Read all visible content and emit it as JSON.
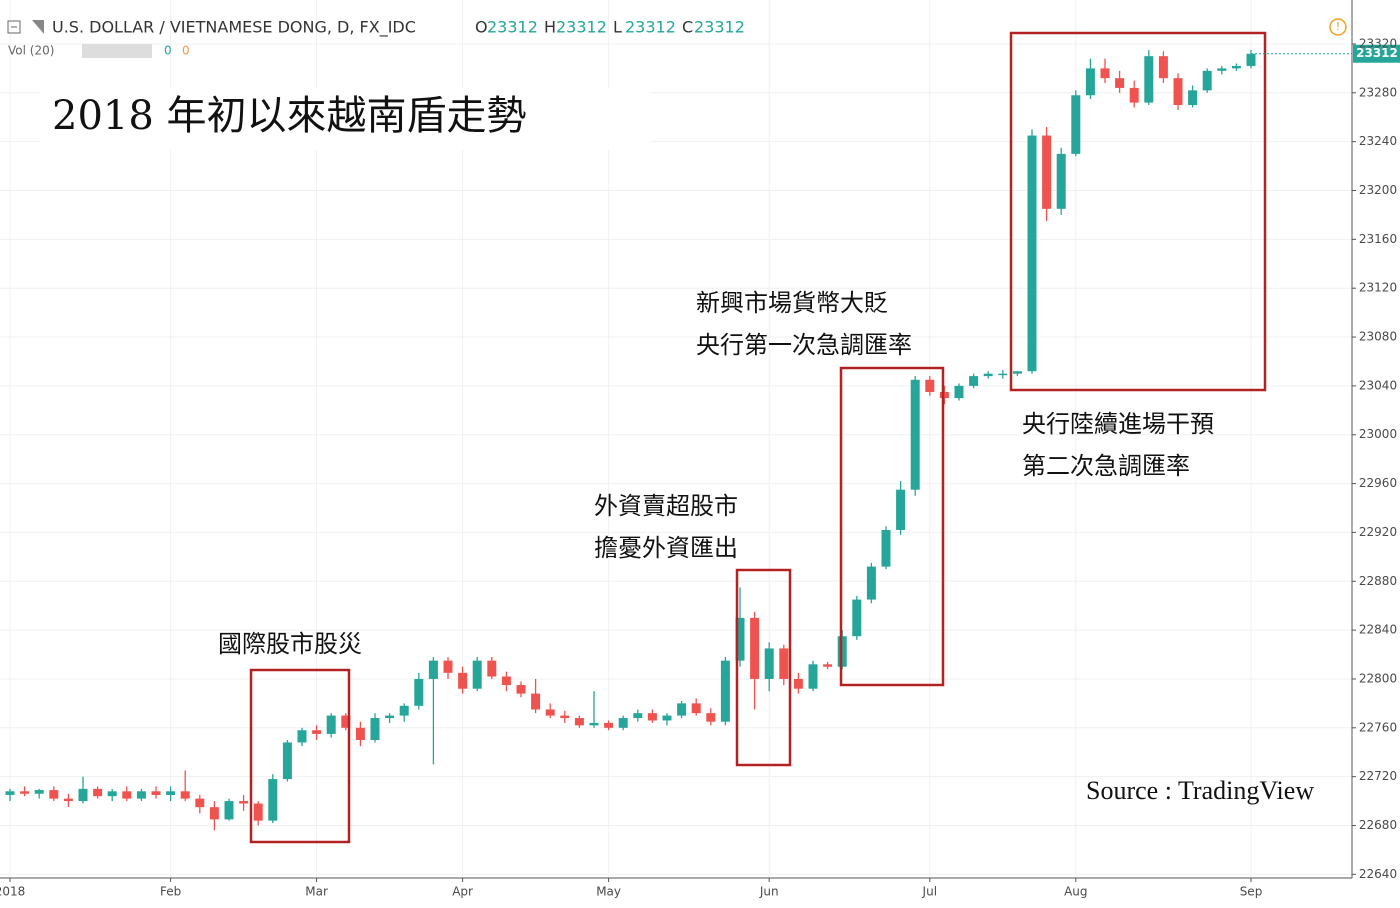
{
  "chart_data": {
    "type": "candlestick",
    "title": "2018 年初以來越南盾走勢",
    "symbol": "U.S. DOLLAR / VIETNAMESE DONG, D, FX_IDC",
    "header_ohlc": [
      {
        "label": "O",
        "value": 23312
      },
      {
        "label": "H",
        "value": 23312
      },
      {
        "label": "L",
        "value": 23312
      },
      {
        "label": "C",
        "value": 23312
      }
    ],
    "volume_label": "Vol (20)",
    "volume_values": [
      0,
      0
    ],
    "source": "Source : TradingView",
    "annotations": [
      {
        "lines": [
          "國際股市股災"
        ]
      },
      {
        "lines": [
          "外資賣超股市",
          "擔憂外資匯出"
        ]
      },
      {
        "lines": [
          "新興市場貨幣大貶",
          "央行第一次急調匯率"
        ]
      },
      {
        "lines": [
          "央行陸續進場干預",
          "第二次急調匯率"
        ]
      }
    ],
    "up_color": "#26a69a",
    "down_color": "#ef5350",
    "categories": [
      "2018",
      null,
      null,
      null,
      null,
      null,
      null,
      null,
      null,
      null,
      null,
      "Feb",
      null,
      null,
      null,
      null,
      null,
      null,
      null,
      null,
      null,
      "Mar",
      null,
      null,
      null,
      null,
      null,
      null,
      null,
      null,
      null,
      "Apr",
      null,
      null,
      null,
      null,
      null,
      null,
      null,
      null,
      null,
      "May",
      null,
      null,
      null,
      null,
      null,
      null,
      null,
      null,
      null,
      null,
      "Jun",
      null,
      null,
      null,
      null,
      null,
      null,
      null,
      null,
      null,
      null,
      "Jul",
      null,
      null,
      null,
      null,
      null,
      null,
      null,
      null,
      null,
      "Aug",
      null,
      null,
      null,
      null,
      null,
      null,
      null,
      null,
      null,
      null,
      null,
      "Sep"
    ],
    "open": [
      22705,
      22708,
      22706,
      22709,
      22702,
      22700,
      22710,
      22704,
      22708,
      22702,
      22708,
      22705,
      22708,
      22702,
      22695,
      22685,
      22700,
      22698,
      22684,
      22718,
      22748,
      22758,
      22755,
      22770,
      22760,
      22750,
      22768,
      22770,
      22778,
      22800,
      22815,
      22805,
      22792,
      22815,
      22802,
      22795,
      22788,
      22775,
      22770,
      22768,
      22762,
      22764,
      22760,
      22768,
      22772,
      22766,
      22770,
      22780,
      22772,
      22765,
      22815,
      22850,
      22800,
      22825,
      22800,
      22792,
      22812,
      22810,
      22835,
      22865,
      22892,
      22922,
      22955,
      23045,
      23035,
      23030,
      23040,
      23048,
      23050,
      23050,
      23052,
      23245,
      23185,
      23230,
      23278,
      23300,
      23292,
      23284,
      23272,
      23310,
      23292,
      23270,
      23282,
      23298,
      23300,
      23302
    ],
    "high": [
      22710,
      22712,
      22710,
      22712,
      22706,
      22720,
      22712,
      22710,
      22712,
      22710,
      22712,
      22712,
      22725,
      22705,
      22700,
      22702,
      22705,
      22700,
      22722,
      22750,
      22760,
      22762,
      22772,
      22772,
      22765,
      22772,
      22772,
      22780,
      22805,
      22818,
      22818,
      22810,
      22818,
      22818,
      22806,
      22798,
      22800,
      22780,
      22774,
      22770,
      22790,
      22766,
      22770,
      22775,
      22775,
      22772,
      22782,
      22784,
      22776,
      22818,
      22875,
      22855,
      22830,
      22828,
      22805,
      22815,
      22814,
      22840,
      22868,
      22895,
      22925,
      22962,
      23048,
      23048,
      23040,
      23042,
      23050,
      23052,
      23053,
      23052,
      23250,
      23252,
      23235,
      23282,
      23308,
      23308,
      23298,
      23290,
      23315,
      23314,
      23296,
      23286,
      23300,
      23302,
      23304,
      23315
    ],
    "low": [
      22700,
      22704,
      22702,
      22700,
      22695,
      22698,
      22702,
      22700,
      22700,
      22700,
      22702,
      22700,
      22700,
      22690,
      22676,
      22684,
      22692,
      22680,
      22682,
      22716,
      22745,
      22750,
      22752,
      22758,
      22745,
      22748,
      22764,
      22765,
      22775,
      22730,
      22800,
      22788,
      22790,
      22800,
      22790,
      22785,
      22772,
      22768,
      22764,
      22760,
      22760,
      22758,
      22758,
      22765,
      22764,
      22762,
      22768,
      22770,
      22762,
      22762,
      22810,
      22775,
      22790,
      22795,
      22788,
      22790,
      22808,
      22808,
      22832,
      22862,
      22890,
      22918,
      22950,
      23032,
      23025,
      23028,
      23038,
      23046,
      23046,
      23048,
      23050,
      23175,
      23180,
      23228,
      23275,
      23288,
      23280,
      23268,
      23270,
      23288,
      23266,
      23268,
      23280,
      23295,
      23298,
      23300
    ],
    "close": [
      22708,
      22706,
      22709,
      22702,
      22700,
      22710,
      22704,
      22708,
      22702,
      22708,
      22705,
      22708,
      22702,
      22695,
      22685,
      22700,
      22698,
      22684,
      22718,
      22748,
      22758,
      22755,
      22770,
      22760,
      22750,
      22768,
      22770,
      22778,
      22800,
      22815,
      22805,
      22792,
      22815,
      22802,
      22795,
      22788,
      22775,
      22770,
      22768,
      22762,
      22764,
      22760,
      22768,
      22772,
      22766,
      22770,
      22780,
      22772,
      22765,
      22815,
      22850,
      22800,
      22825,
      22800,
      22792,
      22812,
      22810,
      22835,
      22865,
      22892,
      22922,
      22955,
      23045,
      23035,
      23030,
      23040,
      23048,
      23050,
      23050,
      23052,
      23245,
      23185,
      23230,
      23278,
      23300,
      23292,
      23284,
      23272,
      23310,
      23292,
      23270,
      23282,
      23298,
      23300,
      23302,
      23312
    ],
    "ylim": [
      22637,
      23356
    ],
    "yticks": [
      22640,
      22680,
      22720,
      22760,
      22800,
      22840,
      22880,
      22920,
      22960,
      23000,
      23040,
      23080,
      23120,
      23160,
      23200,
      23240,
      23280,
      23320
    ],
    "grid": true
  }
}
